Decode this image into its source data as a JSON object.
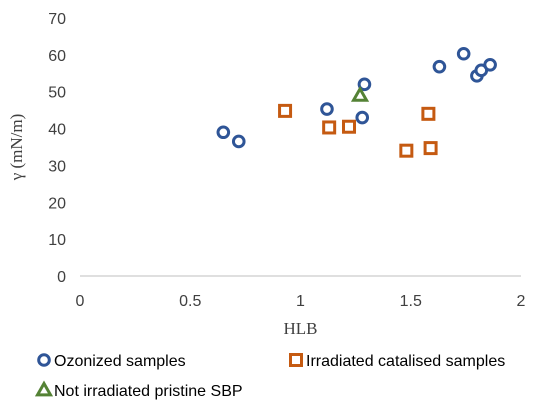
{
  "chart_data": {
    "type": "scatter",
    "xlabel": "HLB",
    "ylabel": "γ (mN/m)",
    "xlim": [
      0,
      2
    ],
    "ylim": [
      0,
      70
    ],
    "xticks": [
      0,
      0.5,
      1,
      1.5,
      2
    ],
    "xtick_labels": [
      "0",
      "0.5",
      "1",
      "1.5",
      "2"
    ],
    "yticks": [
      0,
      10,
      20,
      30,
      40,
      50,
      60,
      70
    ],
    "ytick_labels": [
      "0",
      "10",
      "20",
      "30",
      "40",
      "50",
      "60",
      "70"
    ],
    "grid": false,
    "legend_position": "bottom",
    "series": [
      {
        "name": "Ozonized samples",
        "marker": "circle",
        "color": "#2F5597",
        "points": [
          {
            "x": 0.65,
            "y": 39.0
          },
          {
            "x": 0.72,
            "y": 36.5
          },
          {
            "x": 1.12,
            "y": 45.3
          },
          {
            "x": 1.28,
            "y": 43.0
          },
          {
            "x": 1.29,
            "y": 52.0
          },
          {
            "x": 1.63,
            "y": 56.8
          },
          {
            "x": 1.74,
            "y": 60.3
          },
          {
            "x": 1.8,
            "y": 54.3
          },
          {
            "x": 1.82,
            "y": 55.8
          },
          {
            "x": 1.86,
            "y": 57.3
          }
        ]
      },
      {
        "name": "Irradiated catalised samples",
        "marker": "square",
        "color": "#C55A11",
        "points": [
          {
            "x": 0.93,
            "y": 44.8
          },
          {
            "x": 1.13,
            "y": 40.3
          },
          {
            "x": 1.22,
            "y": 40.5
          },
          {
            "x": 1.48,
            "y": 34.0
          },
          {
            "x": 1.58,
            "y": 44.0
          },
          {
            "x": 1.59,
            "y": 34.7
          }
        ]
      },
      {
        "name": "Not irradiated pristine SBP",
        "marker": "triangle",
        "color": "#548235",
        "points": [
          {
            "x": 1.27,
            "y": 49.0
          }
        ]
      }
    ]
  }
}
